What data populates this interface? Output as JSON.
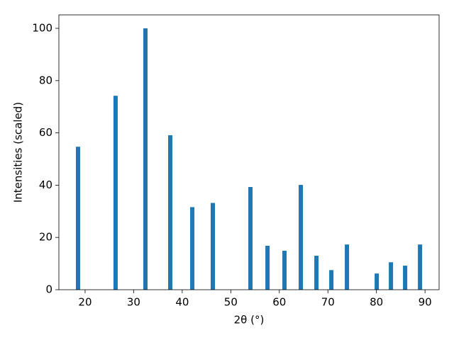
{
  "chart_data": {
    "type": "bar",
    "x_label": "2θ (°)",
    "y_label": "Intensities (scaled)",
    "x": [
      18.54,
      26.28,
      32.42,
      37.54,
      42.07,
      46.3,
      54.05,
      57.56,
      61.06,
      64.42,
      67.64,
      70.71,
      73.92,
      80.06,
      82.98,
      85.9,
      88.97
    ],
    "values": [
      54.7,
      74.2,
      100,
      59.1,
      31.6,
      33.2,
      39.3,
      16.8,
      14.9,
      40.1,
      13.0,
      7.5,
      17.3,
      6.2,
      10.5,
      9.2,
      17.3
    ],
    "color": "#1f77b4",
    "xlim": [
      14.6,
      92.9
    ],
    "xticks": [
      20,
      30,
      40,
      50,
      60,
      70,
      80,
      90
    ],
    "ylim": [
      0,
      105.15
    ],
    "yticks": [
      0,
      20,
      40,
      60,
      80,
      100
    ],
    "grid": false
  }
}
